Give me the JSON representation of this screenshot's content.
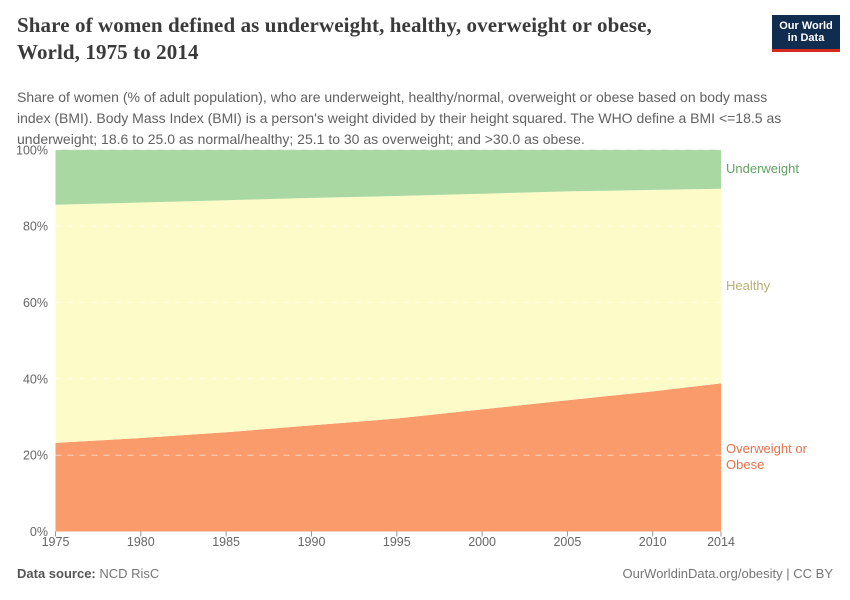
{
  "header": {
    "title_lines": [
      "Share of women defined as underweight, healthy, overweight or obese,",
      "World, 1975 to 2014"
    ],
    "subtitle_lines": [
      "Share of women (% of adult population), who are underweight, healthy/normal, overweight or obese based on body mass",
      "index (BMI). Body Mass Index (BMI) is a person's weight divided by their height squared. The WHO define a BMI <=18.5 as",
      "underweight; 18.6 to 25.0 as normal/healthy; 25.1 to 30 as overweight; and >30.0 as obese."
    ],
    "logo": {
      "line1": "Our World",
      "line2": "in Data",
      "bg_color": "#102d50",
      "stripe_color": "#d42b21"
    }
  },
  "chart_data": {
    "type": "area",
    "stacked": true,
    "title": "Share of women defined as underweight, healthy, overweight or obese, World, 1975 to 2014",
    "x": [
      1975,
      1980,
      1985,
      1990,
      1995,
      2000,
      2005,
      2010,
      2014
    ],
    "series": [
      {
        "name": "Overweight or Obese",
        "color": "#f99b6b",
        "label_color": "#e4714b",
        "values": [
          23.2,
          24.5,
          26.0,
          27.8,
          29.6,
          32.0,
          34.4,
          36.7,
          38.8
        ]
      },
      {
        "name": "Healthy",
        "color": "#fdfcc9",
        "label_color": "#b5b475",
        "values": [
          62.4,
          61.7,
          60.8,
          59.6,
          58.3,
          56.5,
          54.7,
          52.8,
          51.0
        ]
      },
      {
        "name": "Underweight",
        "color": "#a9d8a2",
        "label_color": "#61a261",
        "values": [
          14.4,
          13.8,
          13.2,
          12.6,
          12.1,
          11.5,
          10.9,
          10.5,
          10.2
        ]
      }
    ],
    "ylabel": "",
    "xlabel": "",
    "ylim": [
      0,
      100
    ],
    "x_range": [
      1975,
      2014
    ],
    "y_ticks": [
      0,
      20,
      40,
      60,
      80,
      100
    ],
    "x_ticks": [
      1975,
      1980,
      1985,
      1990,
      1995,
      2000,
      2005,
      2010,
      2014
    ],
    "grid": "dashed",
    "legend_position": "right",
    "colors": {
      "axis_text": "#666666",
      "tick": "#999999",
      "gridline": "rgba(255,255,255,0.55)"
    }
  },
  "footer": {
    "source_label": "Data source:",
    "source_value": "NCD RisC",
    "right_text": "OurWorldinData.org/obesity | CC BY"
  }
}
